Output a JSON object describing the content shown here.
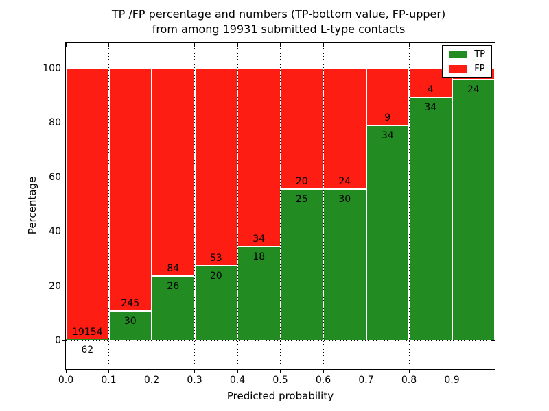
{
  "title": {
    "line1": "TP /FP percentage and numbers (TP-bottom value, FP-upper)",
    "line2": "from among 19931 submitted L-type contacts"
  },
  "axes": {
    "xlabel": "Predicted probability",
    "ylabel": "Percentage",
    "x_tick_labels": [
      "0.0",
      "0.1",
      "0.2",
      "0.3",
      "0.4",
      "0.5",
      "0.6",
      "0.7",
      "0.8",
      "0.9"
    ],
    "y_tick_labels": [
      "0",
      "20",
      "40",
      "60",
      "80",
      "100"
    ],
    "y_tick_pcts": [
      0,
      20,
      40,
      60,
      80,
      100
    ]
  },
  "legend": {
    "position": "upper right",
    "items": [
      {
        "label": "TP",
        "color": "#228b22"
      },
      {
        "label": "FP",
        "color": "#fd1d13"
      }
    ]
  },
  "chart_data": {
    "type": "bar",
    "stacked": true,
    "title": "TP /FP percentage and numbers (TP-bottom value, FP-upper) from among 19931 submitted L-type contacts",
    "xlabel": "Predicted probability",
    "ylabel": "Percentage",
    "ylim": [
      0,
      100
    ],
    "xlim": [
      0.0,
      1.0
    ],
    "bin_width": 0.1,
    "grid": "dotted",
    "legend_position": "upper right",
    "total_submitted": 19931,
    "x_bins": [
      "0.0-0.1",
      "0.1-0.2",
      "0.2-0.3",
      "0.3-0.4",
      "0.4-0.5",
      "0.5-0.6",
      "0.6-0.7",
      "0.7-0.8",
      "0.8-0.9",
      "0.9-1.0"
    ],
    "series": [
      {
        "name": "TP",
        "color": "#228b22",
        "counts": [
          62,
          30,
          26,
          20,
          18,
          25,
          30,
          34,
          34,
          24
        ],
        "pct": [
          0.32,
          10.91,
          23.64,
          27.4,
          34.62,
          55.56,
          55.56,
          79.07,
          89.47,
          96.0
        ]
      },
      {
        "name": "FP",
        "color": "#fd1d13",
        "counts": [
          19154,
          245,
          84,
          53,
          34,
          20,
          24,
          9,
          4,
          null
        ],
        "pct": [
          99.68,
          89.09,
          76.36,
          72.6,
          65.38,
          44.44,
          44.44,
          20.93,
          10.53,
          4.0
        ]
      }
    ]
  }
}
